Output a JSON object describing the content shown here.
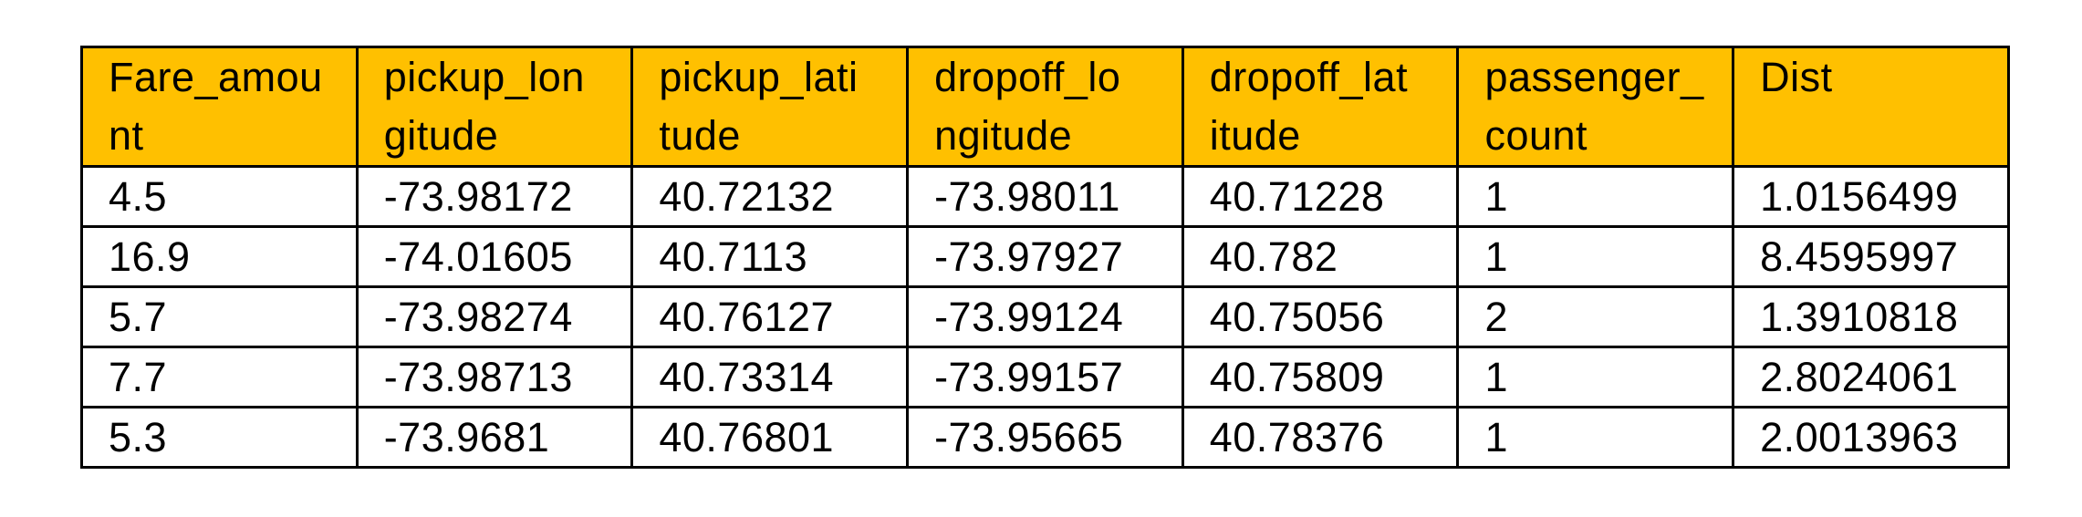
{
  "table": {
    "headers": [
      [
        "Fare_amou",
        "nt"
      ],
      [
        "pickup_lon",
        "gitude"
      ],
      [
        "pickup_lati",
        "tude"
      ],
      [
        "dropoff_lo",
        "ngitude"
      ],
      [
        "dropoff_lat",
        "itude"
      ],
      [
        "passenger_",
        "count"
      ],
      [
        "Dist",
        ""
      ]
    ],
    "rows": [
      [
        "4.5",
        "-73.98172",
        "40.72132",
        "-73.98011",
        "40.71228",
        "1",
        "1.0156499"
      ],
      [
        "16.9",
        "-74.01605",
        "40.7113",
        "-73.97927",
        "40.782",
        "1",
        "8.4595997"
      ],
      [
        "5.7",
        "-73.98274",
        "40.76127",
        "-73.99124",
        "40.75056",
        "2",
        "1.3910818"
      ],
      [
        "7.7",
        "-73.98713",
        "40.73314",
        "-73.99157",
        "40.75809",
        "1",
        "2.8024061"
      ],
      [
        "5.3",
        "-73.9681",
        "40.76801",
        "-73.95665",
        "40.78376",
        "1",
        "2.0013963"
      ]
    ]
  },
  "colors": {
    "header_background": "#ffc000",
    "border": "#000000",
    "text": "#000000"
  }
}
